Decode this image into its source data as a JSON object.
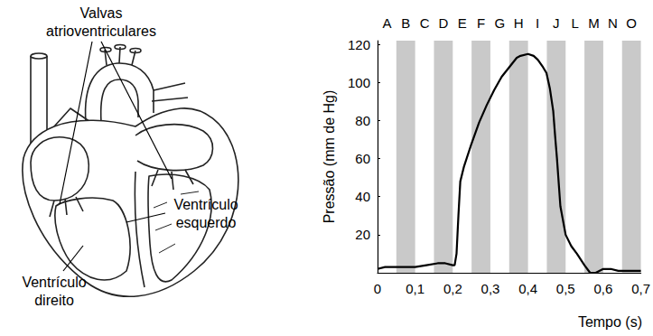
{
  "chart_data": {
    "type": "line",
    "x_label": "Tempo (s)",
    "y_label": "Pressão (mm de Hg)",
    "color": "#000000",
    "line_style": "solid",
    "marker": "none",
    "grid": false,
    "x": [
      0,
      0.02,
      0.05,
      0.08,
      0.1,
      0.13,
      0.16,
      0.18,
      0.2,
      0.205,
      0.21,
      0.215,
      0.22,
      0.23,
      0.25,
      0.27,
      0.29,
      0.31,
      0.33,
      0.35,
      0.37,
      0.38,
      0.4,
      0.415,
      0.426,
      0.44,
      0.449,
      0.458,
      0.467,
      0.472,
      0.477,
      0.486,
      0.5,
      0.515,
      0.53,
      0.55,
      0.565,
      0.58,
      0.6,
      0.62,
      0.64,
      0.67,
      0.7
    ],
    "values": [
      2,
      3,
      3,
      3,
      3,
      4,
      5,
      5,
      4,
      4,
      10,
      30,
      48,
      56,
      68,
      79,
      88,
      96,
      103,
      108,
      113,
      114,
      115,
      114,
      112,
      108,
      105,
      97,
      85,
      72,
      60,
      35,
      20,
      14,
      10,
      4,
      0,
      0,
      2,
      2,
      1,
      1,
      1
    ],
    "xlim": [
      0,
      0.7
    ],
    "xticks": [
      {
        "value": 0,
        "label": "0"
      },
      {
        "value": 0.1,
        "label": "0,1"
      },
      {
        "value": 0.2,
        "label": "0,2"
      },
      {
        "value": 0.3,
        "label": "0,3"
      },
      {
        "value": 0.4,
        "label": "0,4"
      },
      {
        "value": 0.5,
        "label": "0,5"
      },
      {
        "value": 0.6,
        "label": "0,6"
      },
      {
        "value": 0.7,
        "label": "0,7"
      }
    ],
    "ylim": [
      0,
      122
    ],
    "yticks": [
      20,
      40,
      60,
      80,
      100,
      120
    ],
    "interval_labels": [
      "A",
      "B",
      "C",
      "D",
      "E",
      "F",
      "G",
      "H",
      "I",
      "J",
      "L",
      "M",
      "N",
      "O"
    ],
    "interval_edges": [
      0,
      0.05,
      0.1,
      0.15,
      0.2,
      0.25,
      0.3,
      0.35,
      0.4,
      0.45,
      0.5,
      0.55,
      0.6,
      0.65,
      0.7
    ]
  },
  "diagram": {
    "valves_label": [
      "Valvas",
      "atrioventriculares"
    ],
    "left_ventricle_label": [
      "Ventrículo",
      "esquerdo"
    ],
    "right_ventricle_label": [
      "Ventrículo",
      "direito"
    ]
  }
}
